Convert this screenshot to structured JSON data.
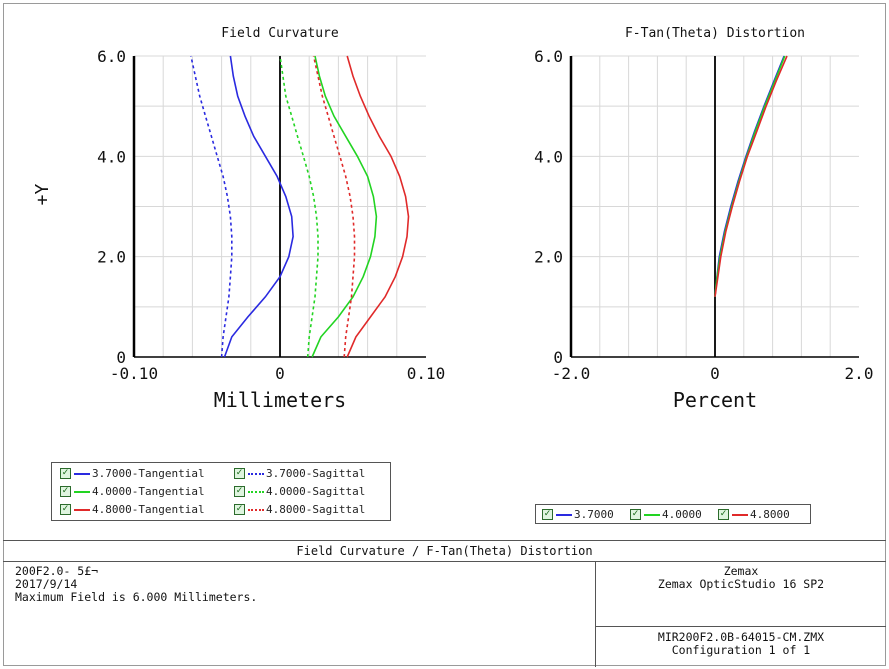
{
  "chart_data": [
    {
      "type": "line",
      "title": "Field Curvature",
      "xlabel": "Millimeters",
      "ylabel": "+Y",
      "xlim": [
        -0.1,
        0.1
      ],
      "ylim": [
        0,
        6.0
      ],
      "x_ticks": [
        "-0.10",
        "0",
        "0.10"
      ],
      "y_ticks": [
        "0",
        "2.0",
        "4.0",
        "6.0"
      ],
      "grid": true,
      "series": [
        {
          "name": "3.7000-Tangential",
          "color": "#2a2ae0",
          "dash": "solid",
          "points": [
            [
              -0.038,
              0
            ],
            [
              -0.033,
              0.4
            ],
            [
              -0.022,
              0.8
            ],
            [
              -0.01,
              1.2
            ],
            [
              0.0,
              1.6
            ],
            [
              0.006,
              2.0
            ],
            [
              0.009,
              2.4
            ],
            [
              0.008,
              2.8
            ],
            [
              0.004,
              3.2
            ],
            [
              -0.002,
              3.6
            ],
            [
              -0.01,
              4.0
            ],
            [
              -0.018,
              4.4
            ],
            [
              -0.024,
              4.8
            ],
            [
              -0.029,
              5.2
            ],
            [
              -0.032,
              5.6
            ],
            [
              -0.034,
              6.0
            ]
          ]
        },
        {
          "name": "3.7000-Sagittal",
          "color": "#2a2ae0",
          "dash": "dashed",
          "points": [
            [
              -0.04,
              0
            ],
            [
              -0.039,
              0.4
            ],
            [
              -0.037,
              0.8
            ],
            [
              -0.035,
              1.2
            ],
            [
              -0.034,
              1.6
            ],
            [
              -0.033,
              2.0
            ],
            [
              -0.033,
              2.4
            ],
            [
              -0.034,
              2.8
            ],
            [
              -0.036,
              3.2
            ],
            [
              -0.039,
              3.6
            ],
            [
              -0.043,
              4.0
            ],
            [
              -0.047,
              4.4
            ],
            [
              -0.051,
              4.8
            ],
            [
              -0.055,
              5.2
            ],
            [
              -0.058,
              5.6
            ],
            [
              -0.061,
              6.0
            ]
          ]
        },
        {
          "name": "4.0000-Tangential",
          "color": "#22d422",
          "dash": "solid",
          "points": [
            [
              0.022,
              0
            ],
            [
              0.028,
              0.4
            ],
            [
              0.04,
              0.8
            ],
            [
              0.05,
              1.2
            ],
            [
              0.057,
              1.6
            ],
            [
              0.062,
              2.0
            ],
            [
              0.065,
              2.4
            ],
            [
              0.066,
              2.8
            ],
            [
              0.064,
              3.2
            ],
            [
              0.06,
              3.6
            ],
            [
              0.053,
              4.0
            ],
            [
              0.045,
              4.4
            ],
            [
              0.037,
              4.8
            ],
            [
              0.031,
              5.2
            ],
            [
              0.027,
              5.6
            ],
            [
              0.024,
              6.0
            ]
          ]
        },
        {
          "name": "4.0000-Sagittal",
          "color": "#22d422",
          "dash": "dashed",
          "points": [
            [
              0.019,
              0
            ],
            [
              0.02,
              0.4
            ],
            [
              0.022,
              0.8
            ],
            [
              0.024,
              1.2
            ],
            [
              0.025,
              1.6
            ],
            [
              0.026,
              2.0
            ],
            [
              0.026,
              2.4
            ],
            [
              0.025,
              2.8
            ],
            [
              0.023,
              3.2
            ],
            [
              0.02,
              3.6
            ],
            [
              0.016,
              4.0
            ],
            [
              0.012,
              4.4
            ],
            [
              0.008,
              4.8
            ],
            [
              0.004,
              5.2
            ],
            [
              0.002,
              5.6
            ],
            [
              0.0,
              6.0
            ]
          ]
        },
        {
          "name": "4.8000-Tangential",
          "color": "#e02a2a",
          "dash": "solid",
          "points": [
            [
              0.046,
              0
            ],
            [
              0.052,
              0.4
            ],
            [
              0.062,
              0.8
            ],
            [
              0.072,
              1.2
            ],
            [
              0.079,
              1.6
            ],
            [
              0.084,
              2.0
            ],
            [
              0.087,
              2.4
            ],
            [
              0.088,
              2.8
            ],
            [
              0.086,
              3.2
            ],
            [
              0.082,
              3.6
            ],
            [
              0.076,
              4.0
            ],
            [
              0.068,
              4.4
            ],
            [
              0.061,
              4.8
            ],
            [
              0.055,
              5.2
            ],
            [
              0.05,
              5.6
            ],
            [
              0.046,
              6.0
            ]
          ]
        },
        {
          "name": "4.8000-Sagittal",
          "color": "#e02a2a",
          "dash": "dashed",
          "points": [
            [
              0.044,
              0
            ],
            [
              0.045,
              0.4
            ],
            [
              0.047,
              0.8
            ],
            [
              0.049,
              1.2
            ],
            [
              0.05,
              1.6
            ],
            [
              0.051,
              2.0
            ],
            [
              0.051,
              2.4
            ],
            [
              0.05,
              2.8
            ],
            [
              0.048,
              3.2
            ],
            [
              0.045,
              3.6
            ],
            [
              0.041,
              4.0
            ],
            [
              0.037,
              4.4
            ],
            [
              0.033,
              4.8
            ],
            [
              0.029,
              5.2
            ],
            [
              0.026,
              5.6
            ],
            [
              0.023,
              6.0
            ]
          ]
        }
      ]
    },
    {
      "type": "line",
      "title": "F-Tan(Theta) Distortion",
      "xlabel": "Percent",
      "xlim": [
        -2.0,
        2.0
      ],
      "ylim": [
        0,
        6.0
      ],
      "x_ticks": [
        "-2.0",
        "0",
        "2.0"
      ],
      "y_ticks": [
        "0",
        "2.0",
        "4.0",
        "6.0"
      ],
      "grid": true,
      "series": [
        {
          "name": "3.7000",
          "color": "#2a2ae0",
          "points": [
            [
              0,
              1.2
            ],
            [
              0.02,
              1.5
            ],
            [
              0.06,
              2.0
            ],
            [
              0.13,
              2.5
            ],
            [
              0.22,
              3.0
            ],
            [
              0.32,
              3.5
            ],
            [
              0.43,
              4.0
            ],
            [
              0.55,
              4.5
            ],
            [
              0.68,
              5.0
            ],
            [
              0.82,
              5.5
            ],
            [
              0.96,
              6.0
            ]
          ]
        },
        {
          "name": "4.0000",
          "color": "#22d422",
          "points": [
            [
              0,
              1.2
            ],
            [
              0.02,
              1.5
            ],
            [
              0.07,
              2.0
            ],
            [
              0.14,
              2.5
            ],
            [
              0.23,
              3.0
            ],
            [
              0.33,
              3.5
            ],
            [
              0.44,
              4.0
            ],
            [
              0.56,
              4.5
            ],
            [
              0.69,
              5.0
            ],
            [
              0.83,
              5.5
            ],
            [
              0.97,
              6.0
            ]
          ]
        },
        {
          "name": "4.8000",
          "color": "#e02a2a",
          "points": [
            [
              0,
              1.2
            ],
            [
              0.03,
              1.5
            ],
            [
              0.08,
              2.0
            ],
            [
              0.15,
              2.5
            ],
            [
              0.24,
              3.0
            ],
            [
              0.34,
              3.5
            ],
            [
              0.45,
              4.0
            ],
            [
              0.58,
              4.5
            ],
            [
              0.71,
              5.0
            ],
            [
              0.85,
              5.5
            ],
            [
              1.0,
              6.0
            ]
          ]
        }
      ]
    }
  ],
  "legend_left": {
    "items": [
      {
        "label": "3.7000-Tangential",
        "color": "#2a2ae0",
        "dash": "solid"
      },
      {
        "label": "3.7000-Sagittal",
        "color": "#2a2ae0",
        "dash": "dashed"
      },
      {
        "label": "4.0000-Tangential",
        "color": "#22d422",
        "dash": "solid"
      },
      {
        "label": "4.0000-Sagittal",
        "color": "#22d422",
        "dash": "dashed"
      },
      {
        "label": "4.8000-Tangential",
        "color": "#e02a2a",
        "dash": "solid"
      },
      {
        "label": "4.8000-Sagittal",
        "color": "#e02a2a",
        "dash": "dashed"
      }
    ]
  },
  "legend_right": {
    "items": [
      {
        "label": "3.7000",
        "color": "#2a2ae0",
        "dash": "solid"
      },
      {
        "label": "4.0000",
        "color": "#22d422",
        "dash": "solid"
      },
      {
        "label": "4.8000",
        "color": "#e02a2a",
        "dash": "solid"
      }
    ]
  },
  "footer": {
    "title": "Field Curvature / F-Tan(Theta) Distortion",
    "left_lines": "200F2.0- 5£¬\n2017/9/14\nMaximum Field is 6.000 Millimeters.",
    "company": "Zemax",
    "software": "Zemax OpticStudio 16 SP2",
    "file": "MIR200F2.0B-64015-CM.ZMX",
    "config": "Configuration 1 of 1"
  },
  "checkbox_glyph": "☑"
}
